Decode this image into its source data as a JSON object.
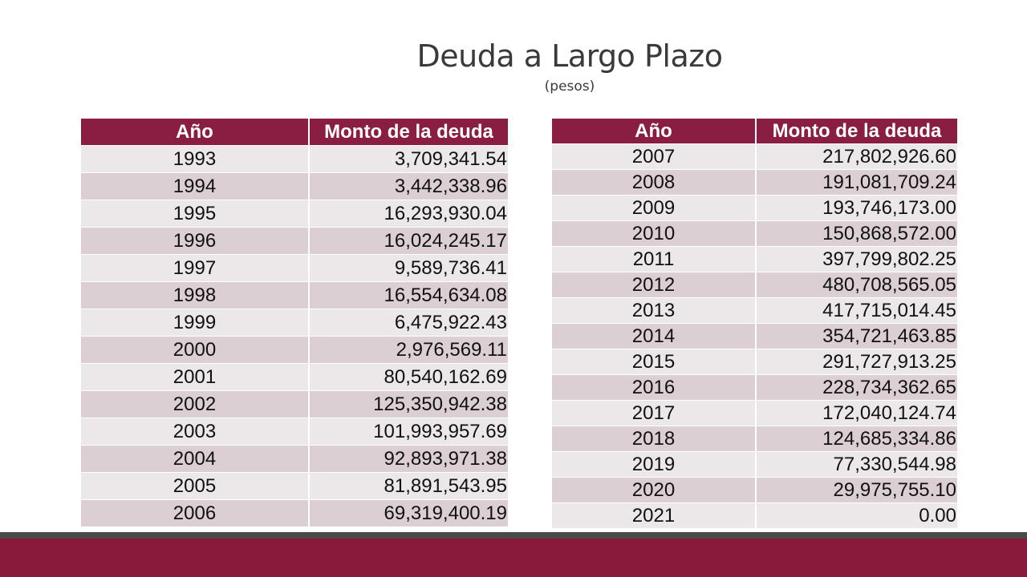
{
  "title": "Deuda a Largo Plazo",
  "subtitle": "(pesos)",
  "columns": {
    "year": "Año",
    "amount": "Monto de la deuda"
  },
  "colors": {
    "header": "#8a1e42",
    "row_light": "#ece7e8",
    "row_dark": "#dccfd3",
    "footer_line": "#4a4a4a",
    "footer_band": "#8a1a3c"
  },
  "table_left": [
    {
      "year": "1993",
      "amount": "3,709,341.54"
    },
    {
      "year": "1994",
      "amount": "3,442,338.96"
    },
    {
      "year": "1995",
      "amount": "16,293,930.04"
    },
    {
      "year": "1996",
      "amount": "16,024,245.17"
    },
    {
      "year": "1997",
      "amount": "9,589,736.41"
    },
    {
      "year": "1998",
      "amount": "16,554,634.08"
    },
    {
      "year": "1999",
      "amount": "6,475,922.43"
    },
    {
      "year": "2000",
      "amount": "2,976,569.11"
    },
    {
      "year": "2001",
      "amount": "80,540,162.69"
    },
    {
      "year": "2002",
      "amount": "125,350,942.38"
    },
    {
      "year": "2003",
      "amount": "101,993,957.69"
    },
    {
      "year": "2004",
      "amount": "92,893,971.38"
    },
    {
      "year": "2005",
      "amount": "81,891,543.95"
    },
    {
      "year": "2006",
      "amount": "69,319,400.19"
    }
  ],
  "table_right": [
    {
      "year": "2007",
      "amount": "217,802,926.60"
    },
    {
      "year": "2008",
      "amount": "191,081,709.24"
    },
    {
      "year": "2009",
      "amount": "193,746,173.00"
    },
    {
      "year": "2010",
      "amount": "150,868,572.00"
    },
    {
      "year": "2011",
      "amount": "397,799,802.25"
    },
    {
      "year": "2012",
      "amount": "480,708,565.05"
    },
    {
      "year": "2013",
      "amount": "417,715,014.45"
    },
    {
      "year": "2014",
      "amount": "354,721,463.85"
    },
    {
      "year": "2015",
      "amount": "291,727,913.25"
    },
    {
      "year": "2016",
      "amount": "228,734,362.65"
    },
    {
      "year": "2017",
      "amount": "172,040,124.74"
    },
    {
      "year": "2018",
      "amount": "124,685,334.86"
    },
    {
      "year": "2019",
      "amount": "77,330,544.98"
    },
    {
      "year": "2020",
      "amount": "29,975,755.10"
    },
    {
      "year": "2021",
      "amount": "0.00"
    }
  ]
}
